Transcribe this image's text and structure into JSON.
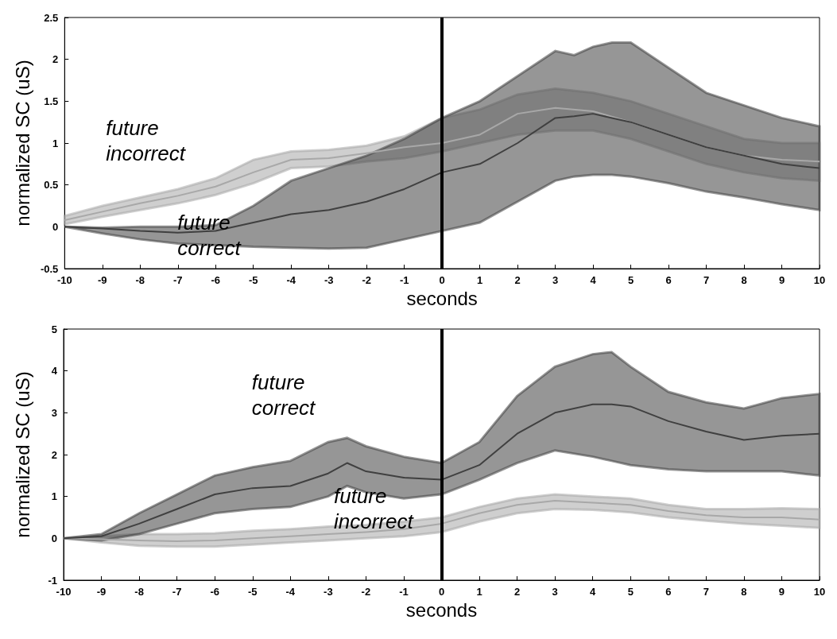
{
  "chart_data": [
    {
      "type": "line",
      "xlabel": "seconds",
      "ylabel": "normalized SC (uS)",
      "xlim": [
        -10,
        10
      ],
      "xticks": [
        -10,
        -9,
        -8,
        -7,
        -6,
        -5,
        -4,
        -3,
        -2,
        -1,
        0,
        1,
        2,
        3,
        4,
        5,
        6,
        7,
        8,
        9,
        10
      ],
      "ylim": [
        -0.5,
        2.5
      ],
      "yticks": [
        -0.5,
        0,
        0.5,
        1,
        1.5,
        2,
        2.5
      ],
      "grid": false,
      "marker": "none",
      "series": [
        {
          "color": "#a8a8a8",
          "x": [
            -10,
            -9,
            -8,
            -7,
            -6,
            -5,
            -4,
            -3,
            -2,
            -1,
            0,
            1,
            2,
            3,
            4,
            5,
            6,
            7,
            8,
            9,
            10
          ],
          "values": [
            0.08,
            0.18,
            0.28,
            0.37,
            0.48,
            0.65,
            0.8,
            0.82,
            0.88,
            0.95,
            1.0,
            1.1,
            1.35,
            1.42,
            1.38,
            1.25,
            1.1,
            0.95,
            0.85,
            0.8,
            0.78
          ],
          "upper": [
            0.13,
            0.25,
            0.35,
            0.45,
            0.58,
            0.8,
            0.9,
            0.92,
            0.97,
            1.08,
            1.3,
            1.4,
            1.58,
            1.65,
            1.6,
            1.5,
            1.35,
            1.2,
            1.05,
            1.0,
            1.0
          ],
          "lower": [
            0.03,
            0.12,
            0.2,
            0.28,
            0.38,
            0.52,
            0.7,
            0.72,
            0.78,
            0.82,
            0.9,
            1.0,
            1.1,
            1.15,
            1.15,
            1.05,
            0.9,
            0.75,
            0.65,
            0.58,
            0.55
          ]
        },
        {
          "color": "#404040",
          "x": [
            -10,
            -9,
            -8,
            -7,
            -6,
            -5,
            -4,
            -3,
            -2,
            -1,
            0,
            1,
            2,
            3,
            3.5,
            4,
            4.5,
            5,
            6,
            7,
            8,
            9,
            10
          ],
          "values": [
            0,
            -0.02,
            -0.05,
            -0.07,
            -0.05,
            0.05,
            0.15,
            0.2,
            0.3,
            0.45,
            0.65,
            0.75,
            1.0,
            1.3,
            1.32,
            1.35,
            1.3,
            1.25,
            1.1,
            0.95,
            0.85,
            0.75,
            0.7
          ],
          "upper": [
            0,
            -0.01,
            0,
            0,
            0.02,
            0.25,
            0.55,
            0.7,
            0.85,
            1.05,
            1.3,
            1.5,
            1.8,
            2.1,
            2.05,
            2.15,
            2.2,
            2.2,
            1.9,
            1.6,
            1.45,
            1.3,
            1.2
          ],
          "lower": [
            0,
            -0.08,
            -0.15,
            -0.2,
            -0.22,
            -0.24,
            -0.25,
            -0.26,
            -0.25,
            -0.15,
            -0.05,
            0.05,
            0.3,
            0.55,
            0.6,
            0.62,
            0.62,
            0.6,
            0.52,
            0.42,
            0.35,
            0.27,
            0.2
          ]
        }
      ],
      "ref_lines": [
        {
          "axis": "x",
          "value": 0,
          "color": "#000000"
        }
      ],
      "annotations": [
        {
          "text": "future incorrect",
          "x": -6,
          "y": 0.48
        },
        {
          "text": "future correct",
          "x": -6,
          "y": -0.05
        }
      ]
    },
    {
      "type": "line",
      "xlabel": "seconds",
      "ylabel": "normalized SC (uS)",
      "xlim": [
        -10,
        10
      ],
      "xticks": [
        -10,
        -9,
        -8,
        -7,
        -6,
        -5,
        -4,
        -3,
        -2,
        -1,
        0,
        1,
        2,
        3,
        4,
        5,
        6,
        7,
        8,
        9,
        10
      ],
      "ylim": [
        -1,
        5
      ],
      "yticks": [
        -1,
        0,
        1,
        2,
        3,
        4,
        5
      ],
      "grid": false,
      "marker": "none",
      "series": [
        {
          "color": "#a8a8a8",
          "x": [
            -10,
            -9,
            -8,
            -7,
            -6,
            -5,
            -4,
            -3,
            -2,
            -1,
            0,
            1,
            2,
            3,
            4,
            5,
            6,
            7,
            8,
            9,
            10
          ],
          "values": [
            0,
            -0.02,
            -0.05,
            -0.07,
            -0.05,
            0,
            0.05,
            0.1,
            0.15,
            0.22,
            0.35,
            0.6,
            0.8,
            0.9,
            0.85,
            0.8,
            0.65,
            0.55,
            0.5,
            0.5,
            0.45
          ],
          "upper": [
            0,
            0.05,
            0.1,
            0.1,
            0.12,
            0.18,
            0.22,
            0.28,
            0.32,
            0.4,
            0.5,
            0.75,
            0.95,
            1.05,
            1.0,
            0.95,
            0.8,
            0.7,
            0.7,
            0.72,
            0.7
          ],
          "lower": [
            0,
            -0.1,
            -0.18,
            -0.2,
            -0.2,
            -0.15,
            -0.1,
            -0.05,
            0,
            0.05,
            0.15,
            0.4,
            0.6,
            0.7,
            0.68,
            0.62,
            0.5,
            0.42,
            0.35,
            0.3,
            0.25
          ]
        },
        {
          "color": "#404040",
          "x": [
            -10,
            -9,
            -8,
            -7,
            -6,
            -5,
            -4,
            -3,
            -2.5,
            -2,
            -1,
            0,
            1,
            2,
            3,
            4,
            4.5,
            5,
            6,
            7,
            8,
            9,
            10
          ],
          "values": [
            0,
            0.05,
            0.35,
            0.7,
            1.05,
            1.2,
            1.25,
            1.55,
            1.8,
            1.6,
            1.45,
            1.4,
            1.75,
            2.5,
            3.0,
            3.2,
            3.2,
            3.15,
            2.8,
            2.55,
            2.35,
            2.45,
            2.5
          ],
          "upper": [
            0,
            0.1,
            0.6,
            1.05,
            1.5,
            1.7,
            1.85,
            2.3,
            2.4,
            2.2,
            1.95,
            1.8,
            2.3,
            3.4,
            4.1,
            4.4,
            4.45,
            4.1,
            3.5,
            3.25,
            3.1,
            3.35,
            3.45
          ],
          "lower": [
            0,
            -0.05,
            0.1,
            0.35,
            0.6,
            0.7,
            0.75,
            1.0,
            1.25,
            1.1,
            0.95,
            1.05,
            1.4,
            1.8,
            2.1,
            1.95,
            1.85,
            1.75,
            1.65,
            1.6,
            1.6,
            1.6,
            1.5
          ]
        }
      ],
      "ref_lines": [
        {
          "axis": "x",
          "value": 0,
          "color": "#000000"
        }
      ],
      "annotations": [
        {
          "text": "future correct",
          "x": -3,
          "y": 2.3
        },
        {
          "text": "future incorrect",
          "x": -1,
          "y": 0.22
        }
      ]
    }
  ]
}
